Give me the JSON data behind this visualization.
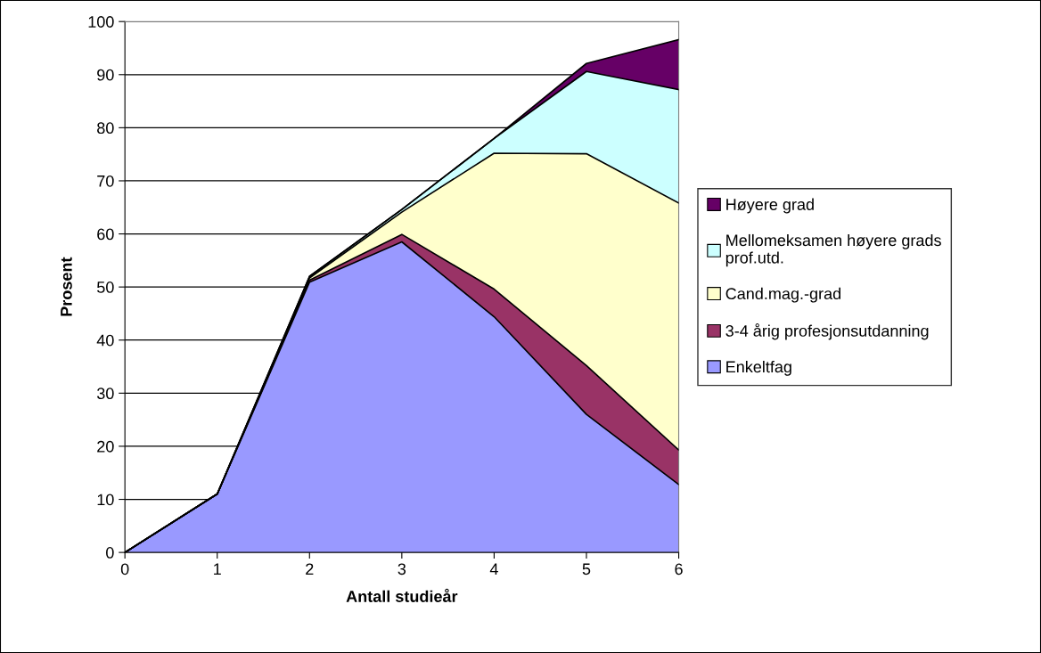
{
  "chart_data": {
    "type": "area",
    "stacked": true,
    "xlabel": "Antall studieår",
    "ylabel": "Prosent",
    "x": [
      0,
      1,
      2,
      3,
      4,
      5,
      6
    ],
    "series": [
      {
        "name": "Enkeltfag",
        "color": "#9999ff",
        "values": [
          0,
          11,
          50.9,
          58.5,
          44.4,
          26,
          12.8
        ]
      },
      {
        "name": "3-4 årig profesjonsutdanning",
        "color": "#993366",
        "values": [
          0,
          0,
          0.4,
          1.4,
          5.2,
          9.2,
          6.5
        ]
      },
      {
        "name": "Cand.mag.-grad",
        "color": "#ffffcc",
        "values": [
          0,
          0,
          0.4,
          4.2,
          25.6,
          39.9,
          46.5
        ]
      },
      {
        "name": "Mellomeksamen høyere grads prof.utd.",
        "color": "#ccffff",
        "values": [
          0,
          0,
          0.3,
          0.5,
          2.8,
          15.5,
          21.4
        ]
      },
      {
        "name": "Høyere grad",
        "color": "#660066",
        "values": [
          0,
          0,
          0,
          0,
          0,
          1.5,
          9.4
        ]
      }
    ],
    "xlim": [
      0,
      6
    ],
    "xticks": [
      0,
      1,
      2,
      3,
      4,
      5,
      6
    ],
    "ylim": [
      0,
      100
    ],
    "yticks": [
      0,
      10,
      20,
      30,
      40,
      50,
      60,
      70,
      80,
      90,
      100
    ],
    "grid": "y",
    "legend": "right"
  }
}
